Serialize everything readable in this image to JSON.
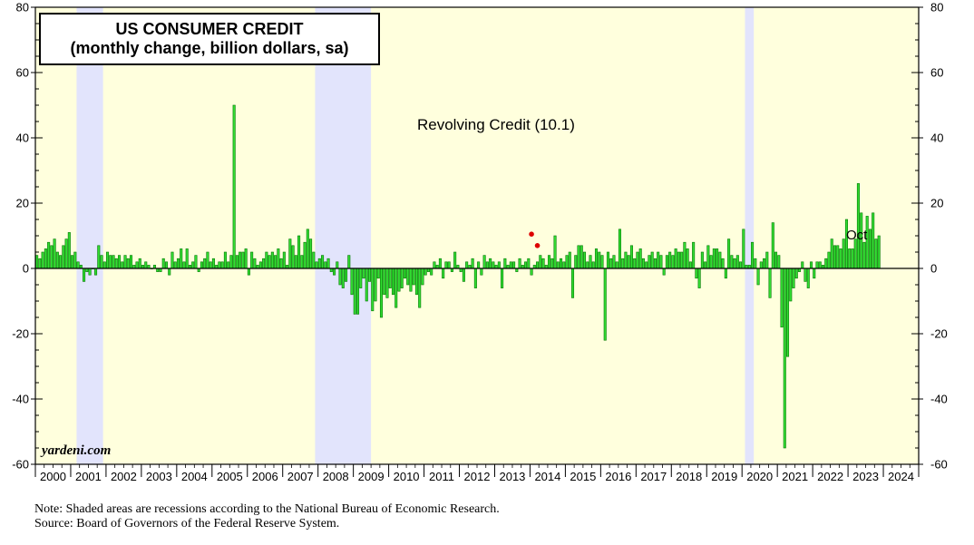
{
  "title": {
    "line1": "US CONSUMER CREDIT",
    "line2": "(monthly change, billion dollars, sa)"
  },
  "watermark": "yardeni.com",
  "series_label": "Revolving Credit (10.1)",
  "end_label": "Oct",
  "notes": {
    "note": "Note: Shaded areas are recessions according to the National Bureau of Economic Research.",
    "source": "Source: Board of Governors of the Federal Reserve System."
  },
  "colors": {
    "plot_background": "#ffffdd",
    "recession_shade": "#e2e4fc",
    "bar_fill": "#33dd33",
    "bar_stroke": "#007700",
    "dot": "#dd0000"
  },
  "chart_data": {
    "type": "bar",
    "title": "US CONSUMER CREDIT (monthly change, billion dollars, sa)",
    "series": [
      {
        "name": "Revolving Credit (10.1)",
        "start": "2000-01",
        "frequency": "monthly",
        "values": [
          4,
          3,
          5,
          6,
          8,
          7,
          9,
          5,
          4,
          7,
          9,
          11,
          4,
          5,
          2,
          1,
          -4,
          -1,
          -2,
          0,
          -2,
          7,
          4,
          2,
          5,
          4,
          4,
          3,
          4,
          2,
          4,
          3,
          4,
          1,
          2,
          3,
          1,
          2,
          1,
          0,
          1,
          -1,
          -1,
          3,
          2,
          -2,
          5,
          2,
          3,
          6,
          2,
          6,
          1,
          2,
          4,
          -1,
          2,
          3,
          5,
          2,
          3,
          1,
          2,
          2,
          5,
          2,
          4,
          50,
          4,
          5,
          5,
          6,
          -2,
          5,
          3,
          1,
          2,
          3,
          5,
          4,
          5,
          4,
          6,
          3,
          5,
          1,
          9,
          7,
          4,
          10,
          4,
          8,
          12,
          9,
          5,
          2,
          3,
          4,
          2,
          3,
          -1,
          -2,
          2,
          -5,
          -6,
          -4,
          4,
          -8,
          -14,
          -14,
          -6,
          -3,
          -10,
          -4,
          -13,
          -10,
          -3,
          -15,
          -8,
          -9,
          -6,
          -8,
          -12,
          -7,
          -6,
          -3,
          -5,
          -7,
          -5,
          -8,
          -12,
          -5,
          -2,
          -1,
          -2,
          2,
          1,
          3,
          -3,
          2,
          2,
          -1,
          5,
          1,
          -1,
          -4,
          2,
          1,
          3,
          -6,
          2,
          -2,
          4,
          2,
          3,
          2,
          1,
          2,
          -6,
          3,
          1,
          2,
          2,
          -1,
          3,
          1,
          2,
          3,
          -2,
          1,
          2,
          4,
          3,
          1,
          4,
          3,
          10,
          2,
          3,
          2,
          4,
          5,
          -9,
          4,
          7,
          7,
          5,
          2,
          4,
          2,
          6,
          5,
          4,
          -22,
          5,
          3,
          4,
          2,
          12,
          3,
          5,
          4,
          7,
          3,
          5,
          6,
          3,
          2,
          4,
          5,
          3,
          5,
          4,
          -2,
          4,
          5,
          4,
          6,
          5,
          5,
          8,
          6,
          2,
          8,
          -3,
          -6,
          5,
          2,
          7,
          4,
          6,
          6,
          5,
          3,
          -3,
          9,
          4,
          3,
          4,
          2,
          12,
          1,
          1,
          8,
          3,
          -5,
          2,
          3,
          5,
          -9,
          14,
          5,
          4,
          -18,
          -55,
          -27,
          -10,
          -6,
          -3,
          -1,
          2,
          -4,
          -6,
          2,
          -3,
          2,
          2,
          1,
          3,
          5,
          9,
          7,
          7,
          6,
          9,
          15,
          6,
          6,
          9,
          26,
          17,
          8,
          16,
          12,
          17,
          9,
          10
        ]
      }
    ],
    "highlight_points": [
      {
        "x": "2014-01",
        "y": 10.5
      },
      {
        "x": "2014-03",
        "y": 7
      }
    ],
    "recessions": [
      [
        "2001-03",
        "2001-11"
      ],
      [
        "2007-12",
        "2009-06"
      ],
      [
        "2020-02",
        "2020-04"
      ]
    ],
    "xlabel": "",
    "ylabel": "",
    "xlim": [
      "2000-01",
      "2024-12"
    ],
    "ylim": [
      -60,
      80
    ],
    "yticks": [
      -60,
      -40,
      -20,
      0,
      20,
      40,
      60,
      80
    ],
    "xticks": [
      "2000",
      "2001",
      "2002",
      "2003",
      "2004",
      "2005",
      "2006",
      "2007",
      "2008",
      "2009",
      "2010",
      "2011",
      "2012",
      "2013",
      "2014",
      "2015",
      "2016",
      "2017",
      "2018",
      "2019",
      "2020",
      "2021",
      "2022",
      "2023",
      "2024"
    ],
    "grid": false,
    "y_axis_both_sides": true
  }
}
